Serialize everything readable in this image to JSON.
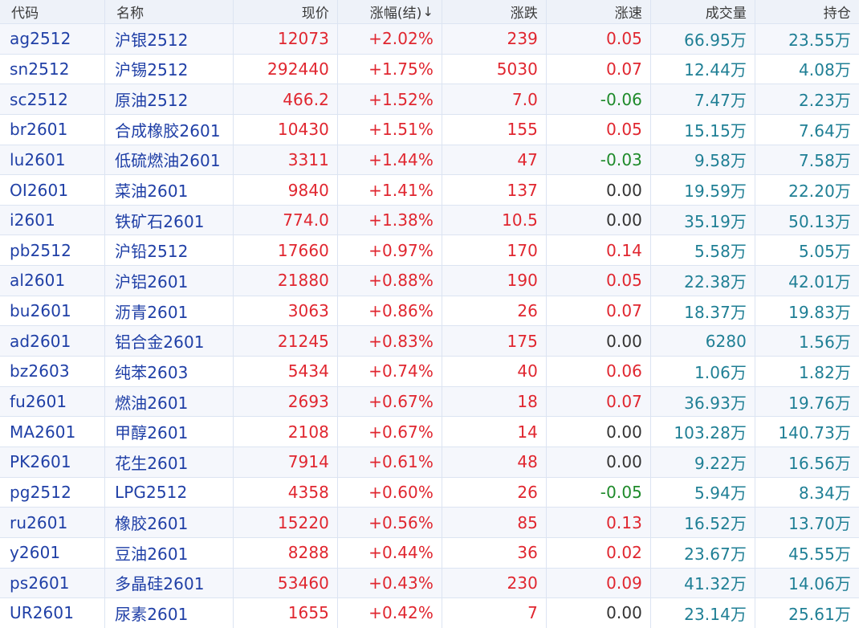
{
  "colors": {
    "up": "#e0262f",
    "down": "#1e8a2a",
    "flat": "#333333",
    "code": "#1f3fa6",
    "volume": "#1f7f95",
    "header_bg": "#eef2f9"
  },
  "headers": [
    "代码",
    "名称",
    "现价",
    "涨幅(结)",
    "涨跌",
    "涨速",
    "成交量",
    "持仓"
  ],
  "sort_indicator": "↓",
  "rows": [
    {
      "code": "ag2512",
      "name": "沪银2512",
      "price": "12073",
      "pct": "+2.02%",
      "change": "239",
      "speed": "0.05",
      "speed_dir": "up",
      "volume": "66.95万",
      "position": "23.55万"
    },
    {
      "code": "sn2512",
      "name": "沪锡2512",
      "price": "292440",
      "pct": "+1.75%",
      "change": "5030",
      "speed": "0.07",
      "speed_dir": "up",
      "volume": "12.44万",
      "position": "4.08万"
    },
    {
      "code": "sc2512",
      "name": "原油2512",
      "price": "466.2",
      "pct": "+1.52%",
      "change": "7.0",
      "speed": "-0.06",
      "speed_dir": "down",
      "volume": "7.47万",
      "position": "2.23万"
    },
    {
      "code": "br2601",
      "name": "合成橡胶2601",
      "price": "10430",
      "pct": "+1.51%",
      "change": "155",
      "speed": "0.05",
      "speed_dir": "up",
      "volume": "15.15万",
      "position": "7.64万"
    },
    {
      "code": "lu2601",
      "name": "低硫燃油2601",
      "price": "3311",
      "pct": "+1.44%",
      "change": "47",
      "speed": "-0.03",
      "speed_dir": "down",
      "volume": "9.58万",
      "position": "7.58万"
    },
    {
      "code": "OI2601",
      "name": "菜油2601",
      "price": "9840",
      "pct": "+1.41%",
      "change": "137",
      "speed": "0.00",
      "speed_dir": "flat",
      "volume": "19.59万",
      "position": "22.20万"
    },
    {
      "code": "i2601",
      "name": "铁矿石2601",
      "price": "774.0",
      "pct": "+1.38%",
      "change": "10.5",
      "speed": "0.00",
      "speed_dir": "flat",
      "volume": "35.19万",
      "position": "50.13万"
    },
    {
      "code": "pb2512",
      "name": "沪铅2512",
      "price": "17660",
      "pct": "+0.97%",
      "change": "170",
      "speed": "0.14",
      "speed_dir": "up",
      "volume": "5.58万",
      "position": "5.05万"
    },
    {
      "code": "al2601",
      "name": "沪铝2601",
      "price": "21880",
      "pct": "+0.88%",
      "change": "190",
      "speed": "0.05",
      "speed_dir": "up",
      "volume": "22.38万",
      "position": "42.01万"
    },
    {
      "code": "bu2601",
      "name": "沥青2601",
      "price": "3063",
      "pct": "+0.86%",
      "change": "26",
      "speed": "0.07",
      "speed_dir": "up",
      "volume": "18.37万",
      "position": "19.83万"
    },
    {
      "code": "ad2601",
      "name": "铝合金2601",
      "price": "21245",
      "pct": "+0.83%",
      "change": "175",
      "speed": "0.00",
      "speed_dir": "flat",
      "volume": "6280",
      "position": "1.56万"
    },
    {
      "code": "bz2603",
      "name": "纯苯2603",
      "price": "5434",
      "pct": "+0.74%",
      "change": "40",
      "speed": "0.06",
      "speed_dir": "up",
      "volume": "1.06万",
      "position": "1.82万"
    },
    {
      "code": "fu2601",
      "name": "燃油2601",
      "price": "2693",
      "pct": "+0.67%",
      "change": "18",
      "speed": "0.07",
      "speed_dir": "up",
      "volume": "36.93万",
      "position": "19.76万"
    },
    {
      "code": "MA2601",
      "name": "甲醇2601",
      "price": "2108",
      "pct": "+0.67%",
      "change": "14",
      "speed": "0.00",
      "speed_dir": "flat",
      "volume": "103.28万",
      "position": "140.73万"
    },
    {
      "code": "PK2601",
      "name": "花生2601",
      "price": "7914",
      "pct": "+0.61%",
      "change": "48",
      "speed": "0.00",
      "speed_dir": "flat",
      "volume": "9.22万",
      "position": "16.56万"
    },
    {
      "code": "pg2512",
      "name": "LPG2512",
      "price": "4358",
      "pct": "+0.60%",
      "change": "26",
      "speed": "-0.05",
      "speed_dir": "down",
      "volume": "5.94万",
      "position": "8.34万"
    },
    {
      "code": "ru2601",
      "name": "橡胶2601",
      "price": "15220",
      "pct": "+0.56%",
      "change": "85",
      "speed": "0.13",
      "speed_dir": "up",
      "volume": "16.52万",
      "position": "13.70万"
    },
    {
      "code": "y2601",
      "name": "豆油2601",
      "price": "8288",
      "pct": "+0.44%",
      "change": "36",
      "speed": "0.02",
      "speed_dir": "up",
      "volume": "23.67万",
      "position": "45.55万"
    },
    {
      "code": "ps2601",
      "name": "多晶硅2601",
      "price": "53460",
      "pct": "+0.43%",
      "change": "230",
      "speed": "0.09",
      "speed_dir": "up",
      "volume": "41.32万",
      "position": "14.06万"
    },
    {
      "code": "UR2601",
      "name": "尿素2601",
      "price": "1655",
      "pct": "+0.42%",
      "change": "7",
      "speed": "0.00",
      "speed_dir": "flat",
      "volume": "23.14万",
      "position": "25.61万"
    }
  ]
}
